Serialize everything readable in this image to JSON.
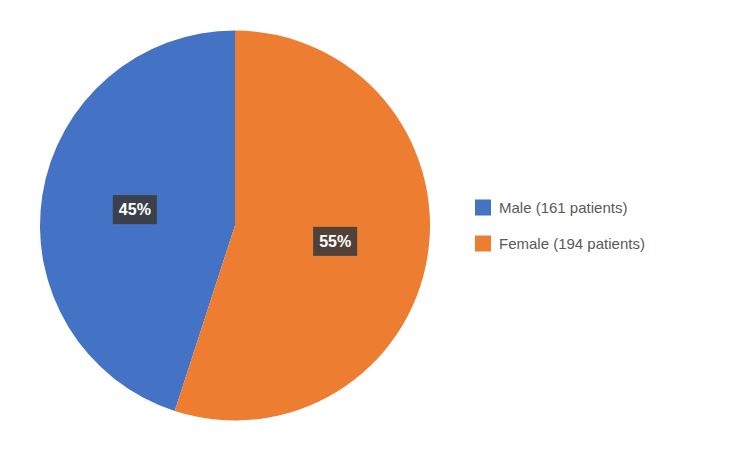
{
  "chart_data": {
    "type": "pie",
    "categories": [
      "Male (161 patients)",
      "Female (194 patients)"
    ],
    "values": [
      45,
      55
    ],
    "value_labels": [
      "45%",
      "55%"
    ],
    "colors": [
      "#4472C4",
      "#ED7D31"
    ],
    "data_labels": true,
    "legend": "right"
  }
}
